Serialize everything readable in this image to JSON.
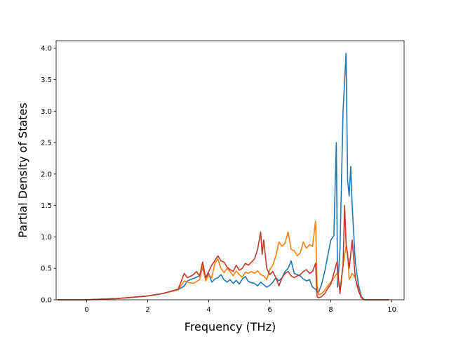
{
  "chart_data": {
    "type": "line",
    "xlabel": "Frequency (THz)",
    "ylabel": "Partial Density of States",
    "xlim": [
      -1.0,
      10.4
    ],
    "ylim": [
      0.0,
      4.12
    ],
    "xticks": [
      0,
      2,
      4,
      6,
      8,
      10
    ],
    "yticks": [
      0.0,
      0.5,
      1.0,
      1.5,
      2.0,
      2.5,
      3.0,
      3.5,
      4.0
    ],
    "xtick_labels": [
      "0",
      "2",
      "4",
      "6",
      "8",
      "10"
    ],
    "ytick_labels": [
      "0.0",
      "0.5",
      "1.0",
      "1.5",
      "2.0",
      "2.5",
      "3.0",
      "3.5",
      "4.0"
    ],
    "grid": false,
    "series": [
      {
        "color": "#1f77b4",
        "x": [
          -0.95,
          0.0,
          0.5,
          1.0,
          1.5,
          2.0,
          2.5,
          3.0,
          3.2,
          3.3,
          3.5,
          3.7,
          3.8,
          3.9,
          4.0,
          4.1,
          4.2,
          4.3,
          4.4,
          4.5,
          4.6,
          4.7,
          4.8,
          4.9,
          5.0,
          5.1,
          5.2,
          5.3,
          5.4,
          5.5,
          5.6,
          5.7,
          5.8,
          5.9,
          6.0,
          6.1,
          6.2,
          6.3,
          6.4,
          6.5,
          6.6,
          6.7,
          6.8,
          6.9,
          7.0,
          7.1,
          7.2,
          7.3,
          7.4,
          7.5,
          7.55,
          7.6,
          7.7,
          7.8,
          7.9,
          8.0,
          8.1,
          8.18,
          8.22,
          8.3,
          8.4,
          8.5,
          8.55,
          8.6,
          8.65,
          8.7,
          8.8,
          8.9,
          9.0,
          9.1,
          9.9
        ],
        "y": [
          0.0,
          0.0,
          0.01,
          0.02,
          0.04,
          0.06,
          0.1,
          0.16,
          0.22,
          0.3,
          0.34,
          0.38,
          0.5,
          0.35,
          0.42,
          0.28,
          0.33,
          0.35,
          0.4,
          0.32,
          0.28,
          0.32,
          0.26,
          0.31,
          0.25,
          0.33,
          0.37,
          0.29,
          0.27,
          0.26,
          0.22,
          0.28,
          0.24,
          0.2,
          0.23,
          0.28,
          0.35,
          0.3,
          0.35,
          0.45,
          0.5,
          0.62,
          0.42,
          0.4,
          0.38,
          0.33,
          0.3,
          0.32,
          0.2,
          0.17,
          0.12,
          0.12,
          0.25,
          0.45,
          0.7,
          0.95,
          1.02,
          2.5,
          0.2,
          0.8,
          3.0,
          3.92,
          1.9,
          1.65,
          2.12,
          1.5,
          0.6,
          0.25,
          0.05,
          0.0,
          0.0
        ]
      },
      {
        "color": "#ff7f0e",
        "x": [
          -0.95,
          0.0,
          0.5,
          1.0,
          1.5,
          2.0,
          2.5,
          3.0,
          3.2,
          3.3,
          3.5,
          3.7,
          3.8,
          3.9,
          4.0,
          4.1,
          4.2,
          4.3,
          4.4,
          4.5,
          4.6,
          4.7,
          4.8,
          4.9,
          5.0,
          5.1,
          5.2,
          5.3,
          5.4,
          5.5,
          5.6,
          5.7,
          5.8,
          5.9,
          6.0,
          6.1,
          6.2,
          6.3,
          6.4,
          6.5,
          6.6,
          6.7,
          6.8,
          6.9,
          7.0,
          7.1,
          7.2,
          7.3,
          7.4,
          7.5,
          7.55,
          7.6,
          7.7,
          7.8,
          7.9,
          8.0,
          8.1,
          8.2,
          8.3,
          8.4,
          8.5,
          8.55,
          8.6,
          8.7,
          8.8,
          8.9,
          9.0,
          9.1,
          9.9
        ],
        "y": [
          0.0,
          0.0,
          0.01,
          0.02,
          0.04,
          0.06,
          0.1,
          0.16,
          0.3,
          0.28,
          0.26,
          0.32,
          0.53,
          0.3,
          0.4,
          0.35,
          0.58,
          0.65,
          0.5,
          0.43,
          0.5,
          0.45,
          0.38,
          0.46,
          0.4,
          0.36,
          0.44,
          0.42,
          0.45,
          0.42,
          0.46,
          0.4,
          0.38,
          0.32,
          0.48,
          0.55,
          0.7,
          0.92,
          0.85,
          0.9,
          1.08,
          0.8,
          0.78,
          0.7,
          0.75,
          0.92,
          0.82,
          0.88,
          0.85,
          1.25,
          0.22,
          0.08,
          0.1,
          0.15,
          0.22,
          0.28,
          0.35,
          0.42,
          0.15,
          0.55,
          0.85,
          0.75,
          0.32,
          0.42,
          0.35,
          0.18,
          0.03,
          0.0,
          0.0
        ]
      },
      {
        "color": "#c0392b",
        "x": [
          -0.95,
          0.0,
          0.5,
          1.0,
          1.5,
          2.0,
          2.5,
          3.0,
          3.2,
          3.3,
          3.5,
          3.6,
          3.7,
          3.8,
          3.9,
          4.0,
          4.1,
          4.2,
          4.3,
          4.4,
          4.5,
          4.6,
          4.7,
          4.8,
          4.9,
          5.0,
          5.1,
          5.2,
          5.3,
          5.4,
          5.5,
          5.6,
          5.7,
          5.75,
          5.8,
          5.9,
          6.0,
          6.1,
          6.2,
          6.3,
          6.4,
          6.5,
          6.6,
          6.7,
          6.8,
          6.9,
          7.0,
          7.1,
          7.2,
          7.3,
          7.4,
          7.5,
          7.55,
          7.6,
          7.7,
          7.8,
          7.9,
          8.0,
          8.1,
          8.2,
          8.3,
          8.4,
          8.45,
          8.5,
          8.6,
          8.7,
          8.8,
          8.9,
          9.0,
          9.1,
          9.9
        ],
        "y": [
          0.0,
          0.0,
          0.01,
          0.02,
          0.04,
          0.06,
          0.1,
          0.17,
          0.42,
          0.35,
          0.4,
          0.45,
          0.38,
          0.6,
          0.35,
          0.45,
          0.55,
          0.62,
          0.7,
          0.62,
          0.6,
          0.52,
          0.48,
          0.45,
          0.55,
          0.47,
          0.5,
          0.58,
          0.55,
          0.6,
          0.65,
          0.8,
          1.08,
          0.72,
          0.95,
          0.5,
          0.4,
          0.45,
          0.35,
          0.22,
          0.35,
          0.42,
          0.45,
          0.38,
          0.35,
          0.38,
          0.4,
          0.45,
          0.48,
          0.42,
          0.45,
          0.58,
          0.05,
          0.03,
          0.05,
          0.1,
          0.18,
          0.25,
          0.42,
          0.6,
          0.1,
          0.55,
          1.5,
          0.9,
          0.5,
          0.95,
          0.35,
          0.15,
          0.03,
          0.0,
          0.0
        ]
      }
    ]
  }
}
